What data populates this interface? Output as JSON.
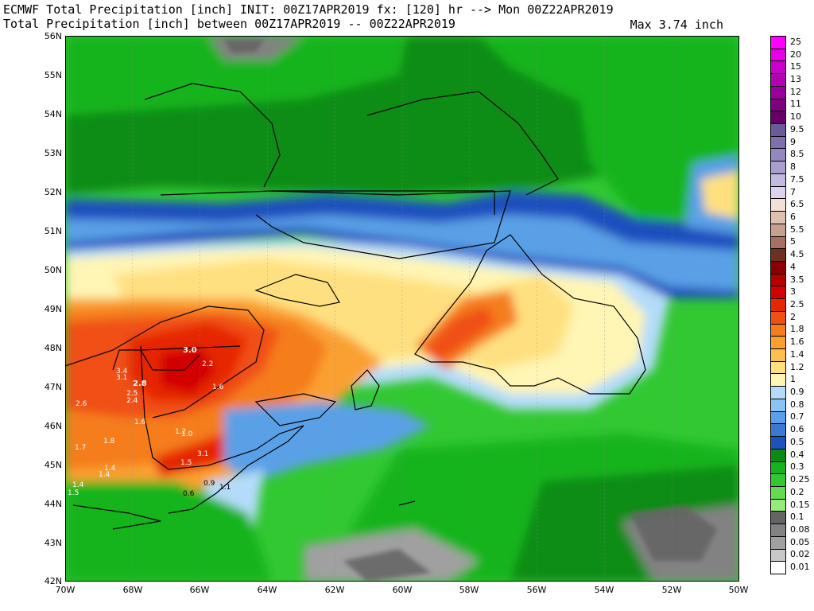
{
  "header": {
    "line1": "ECMWF Total Precipitation [inch] INIT: 00Z17APR2019 fx: [120] hr --> Mon 00Z22APR2019",
    "line2": "Total Precipitation [inch] between 00Z17APR2019 -- 00Z22APR2019",
    "max": "Max 3.74 inch"
  },
  "axes": {
    "lat": [
      "56N",
      "55N",
      "54N",
      "53N",
      "52N",
      "51N",
      "50N",
      "49N",
      "48N",
      "47N",
      "46N",
      "45N",
      "44N",
      "43N",
      "42N"
    ],
    "lon": [
      "70W",
      "68W",
      "66W",
      "64W",
      "62W",
      "60W",
      "58W",
      "56W",
      "54W",
      "52W",
      "50W"
    ]
  },
  "legend": [
    {
      "label": "25",
      "color": "#ff00ff"
    },
    {
      "label": "20",
      "color": "#e600e6"
    },
    {
      "label": "15",
      "color": "#cc00cc"
    },
    {
      "label": "13",
      "color": "#b300b3"
    },
    {
      "label": "12",
      "color": "#990099"
    },
    {
      "label": "11",
      "color": "#800080"
    },
    {
      "label": "10",
      "color": "#660066"
    },
    {
      "label": "9.5",
      "color": "#6a5a9a"
    },
    {
      "label": "9",
      "color": "#7e6fae"
    },
    {
      "label": "8.5",
      "color": "#9486c0"
    },
    {
      "label": "8",
      "color": "#aa9ed0"
    },
    {
      "label": "7.5",
      "color": "#c2b8e0"
    },
    {
      "label": "7",
      "color": "#dcd4ee"
    },
    {
      "label": "6.5",
      "color": "#f0e0d8"
    },
    {
      "label": "6",
      "color": "#dcc0b0"
    },
    {
      "label": "5.5",
      "color": "#c8a090"
    },
    {
      "label": "5",
      "color": "#a87060"
    },
    {
      "label": "4.5",
      "color": "#6e3020"
    },
    {
      "label": "4",
      "color": "#8b0000"
    },
    {
      "label": "3.5",
      "color": "#b40000"
    },
    {
      "label": "3",
      "color": "#d20000"
    },
    {
      "label": "2.5",
      "color": "#e62800"
    },
    {
      "label": "2",
      "color": "#f05014"
    },
    {
      "label": "1.8",
      "color": "#f57d1e"
    },
    {
      "label": "1.6",
      "color": "#faa032"
    },
    {
      "label": "1.4",
      "color": "#fcc050"
    },
    {
      "label": "1.2",
      "color": "#ffe080"
    },
    {
      "label": "1",
      "color": "#fff5b4"
    },
    {
      "label": "0.9",
      "color": "#b4dcfa"
    },
    {
      "label": "0.8",
      "color": "#8cc3f5"
    },
    {
      "label": "0.7",
      "color": "#5aa0e6"
    },
    {
      "label": "0.6",
      "color": "#3c78d2"
    },
    {
      "label": "0.5",
      "color": "#1e50be"
    },
    {
      "label": "0.4",
      "color": "#0a8c14"
    },
    {
      "label": "0.3",
      "color": "#14b41e"
    },
    {
      "label": "0.25",
      "color": "#32c832"
    },
    {
      "label": "0.2",
      "color": "#64dc50"
    },
    {
      "label": "0.15",
      "color": "#96eb7d"
    },
    {
      "label": "0.1",
      "color": "#646464"
    },
    {
      "label": "0.08",
      "color": "#828282"
    },
    {
      "label": "0.05",
      "color": "#a0a0a0"
    },
    {
      "label": "0.02",
      "color": "#c8c8c8"
    },
    {
      "label": "0.01",
      "color": "#ffffff"
    }
  ],
  "station_values": [
    "3.0",
    "2.2",
    "3.4",
    "3.1",
    "2.8",
    "2.5",
    "2.4",
    "1.6",
    "2.6",
    "1.6",
    "1.2",
    "1.0",
    "1.8",
    "1.7",
    "3.1",
    "1.5",
    "1.4",
    "1.4",
    "1.4",
    "1.5",
    "0.9",
    "1.1",
    "0.6"
  ],
  "colors": {
    "ocean_green": "#3cc83c",
    "deep_green": "#14a01e",
    "coast": "#000000"
  }
}
